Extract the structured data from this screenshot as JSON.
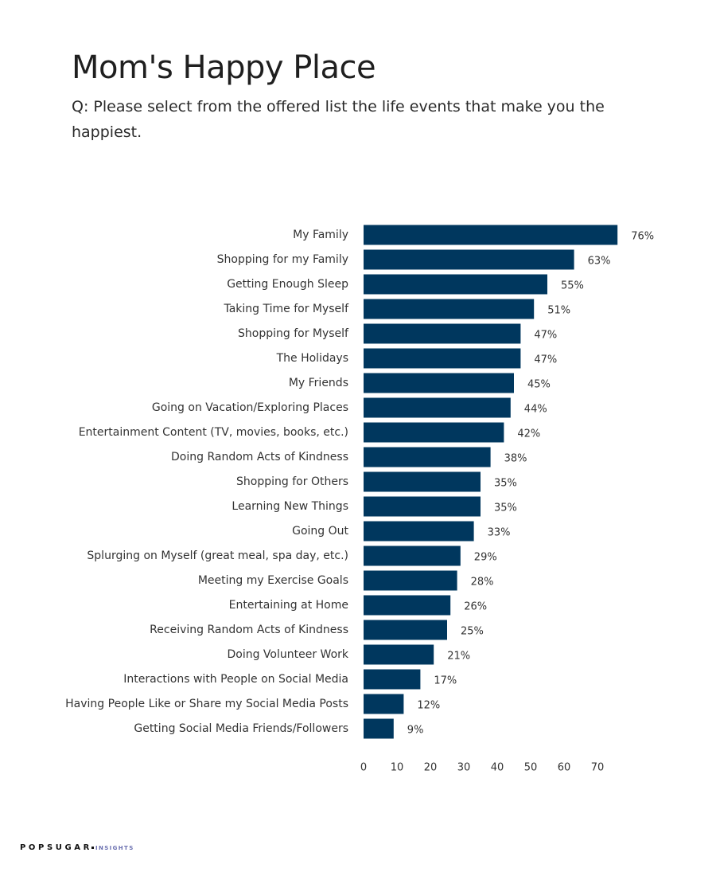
{
  "header": {
    "title": "Mom's Happy Place",
    "subtitle": "Q: Please select from the offered list the life events that make you the happiest."
  },
  "footer": {
    "brand": "POPSUGAR",
    "sub": "INSIGHTS"
  },
  "colors": {
    "bar": "#00375e",
    "text": "#333333"
  },
  "chart_data": {
    "type": "bar",
    "orientation": "horizontal",
    "title": "Mom's Happy Place",
    "subtitle": "Q: Please select from the offered list the life events that make you the happiest.",
    "xlabel": "",
    "ylabel": "",
    "xlim": [
      0,
      76
    ],
    "ticks": [
      0,
      10,
      20,
      30,
      40,
      50,
      60,
      70
    ],
    "grid": false,
    "legend": "none",
    "value_suffix": "%",
    "categories": [
      "My Family",
      "Shopping for my Family",
      "Getting Enough Sleep",
      "Taking Time for Myself",
      "Shopping for Myself",
      "The Holidays",
      "My Friends",
      "Going on Vacation/Exploring Places",
      "Entertainment Content (TV, movies, books, etc.)",
      "Doing Random Acts of Kindness",
      "Shopping for Others",
      "Learning New Things",
      "Going Out",
      "Splurging on Myself (great meal, spa day, etc.)",
      "Meeting my Exercise Goals",
      "Entertaining at Home",
      "Receiving Random Acts of Kindness",
      "Doing Volunteer Work",
      "Interactions with People on Social Media",
      "Having People Like or Share my Social Media Posts",
      "Getting Social Media Friends/Followers"
    ],
    "values": [
      76,
      63,
      55,
      51,
      47,
      47,
      45,
      44,
      42,
      38,
      35,
      35,
      33,
      29,
      28,
      26,
      25,
      21,
      17,
      12,
      9
    ],
    "value_labels": [
      "76%",
      "63%",
      "55%",
      "51%",
      "47%",
      "47%",
      "45%",
      "44%",
      "42%",
      "38%",
      "35%",
      "35%",
      "33%",
      "29%",
      "28%",
      "26%",
      "25%",
      "21%",
      "17%",
      "12%",
      "9%"
    ]
  }
}
